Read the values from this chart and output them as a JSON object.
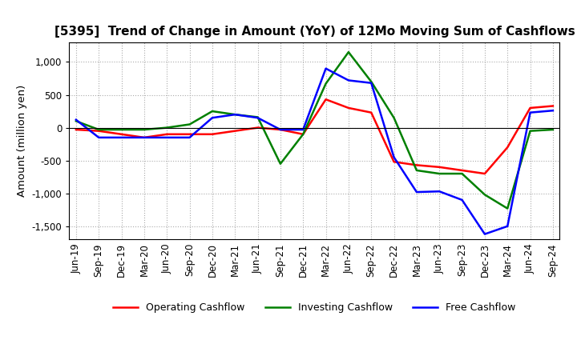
{
  "title": "[5395]  Trend of Change in Amount (YoY) of 12Mo Moving Sum of Cashflows",
  "ylabel": "Amount (million yen)",
  "ylim": [
    -1700,
    1300
  ],
  "yticks": [
    -1500,
    -1000,
    -500,
    0,
    500,
    1000
  ],
  "x_labels": [
    "Jun-19",
    "Sep-19",
    "Dec-19",
    "Mar-20",
    "Jun-20",
    "Sep-20",
    "Dec-20",
    "Mar-21",
    "Jun-21",
    "Sep-21",
    "Dec-21",
    "Mar-22",
    "Jun-22",
    "Sep-22",
    "Dec-22",
    "Mar-23",
    "Jun-23",
    "Sep-23",
    "Dec-23",
    "Mar-24",
    "Jun-24",
    "Sep-24"
  ],
  "operating_cashflow": [
    -30,
    -50,
    -100,
    -150,
    -100,
    -100,
    -100,
    -50,
    0,
    -30,
    -100,
    430,
    300,
    230,
    -520,
    -570,
    -600,
    -650,
    -700,
    -300,
    300,
    330
  ],
  "investing_cashflow": [
    100,
    -30,
    -30,
    -30,
    0,
    50,
    250,
    200,
    160,
    -550,
    -100,
    670,
    1150,
    700,
    150,
    -650,
    -700,
    -700,
    -1020,
    -1230,
    -50,
    -30
  ],
  "free_cashflow": [
    120,
    -150,
    -150,
    -150,
    -150,
    -150,
    150,
    200,
    150,
    -30,
    -30,
    900,
    720,
    680,
    -450,
    -980,
    -970,
    -1100,
    -1620,
    -1500,
    230,
    260
  ],
  "op_color": "#ff0000",
  "inv_color": "#008000",
  "free_color": "#0000ff",
  "bg_color": "#ffffff",
  "grid_color": "#aaaaaa",
  "title_fontsize": 11,
  "legend_fontsize": 9,
  "tick_fontsize": 8.5
}
